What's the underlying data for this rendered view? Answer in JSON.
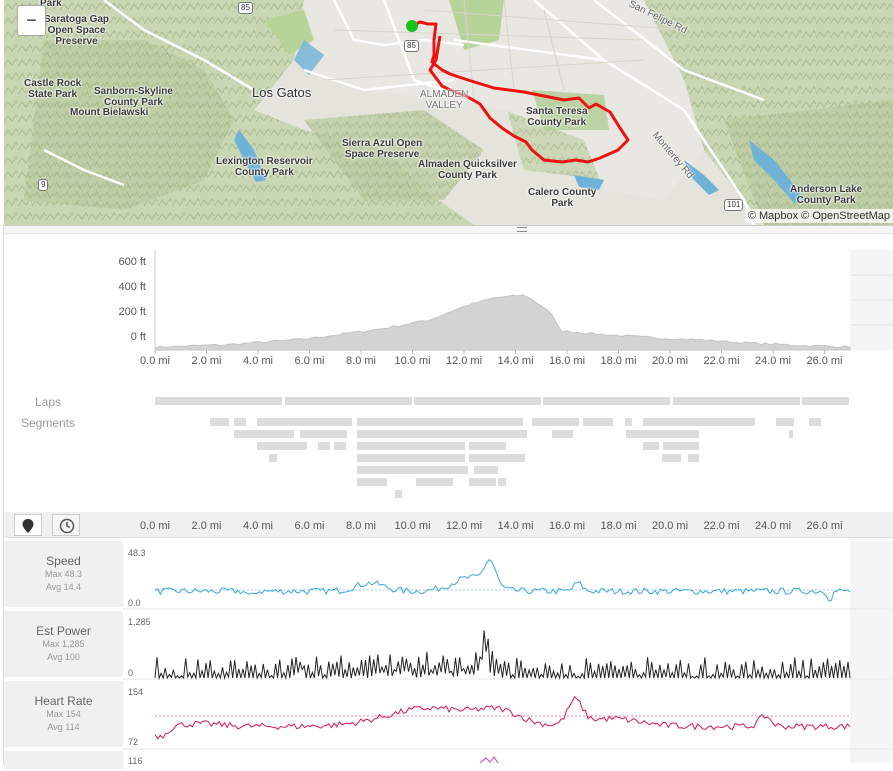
{
  "map": {
    "zoom_out_label": "−",
    "attribution": "© Mapbox © OpenStreetMap",
    "labels": [
      {
        "text": "Saratoga Gap\nOpen Space\nPreserve",
        "kind": "place"
      },
      {
        "text": "Castle Rock\nState Park",
        "kind": "place"
      },
      {
        "text": "Sanborn-Skyline\nCounty Park",
        "kind": "place"
      },
      {
        "text": "Mount Bielawski",
        "kind": "place"
      },
      {
        "text": "Los Gatos",
        "kind": "city"
      },
      {
        "text": "Lexington Reservoir\nCounty Park",
        "kind": "place"
      },
      {
        "text": "Sierra Azul Open\nSpace Preserve",
        "kind": "place"
      },
      {
        "text": "Almaden Quicksilver\nCounty Park",
        "kind": "place"
      },
      {
        "text": "ALMADEN\nVALLEY",
        "kind": "area"
      },
      {
        "text": "Santa Teresa\nCounty Park",
        "kind": "place"
      },
      {
        "text": "Calero County\nPark",
        "kind": "place"
      },
      {
        "text": "Anderson Lake\nCounty Park",
        "kind": "place"
      },
      {
        "text": "San Felipe Rd",
        "kind": "street"
      },
      {
        "text": "Monterey Rd",
        "kind": "street"
      },
      {
        "text": "Park",
        "kind": "place"
      }
    ],
    "shields": [
      "85",
      "85",
      "9",
      "101"
    ],
    "colors": {
      "route": "#ee1111",
      "start": "#19c31a"
    }
  },
  "elevation": {
    "y_ticks": [
      "600 ft",
      "400 ft",
      "200 ft",
      "0 ft"
    ],
    "x_ticks": [
      "0.0 mi",
      "2.0 mi",
      "4.0 mi",
      "6.0 mi",
      "8.0 mi",
      "10.0 mi",
      "12.0 mi",
      "14.0 mi",
      "16.0 mi",
      "18.0 mi",
      "20.0 mi",
      "22.0 mi",
      "24.0 mi",
      "26.0 mi"
    ],
    "laps_label": "Laps",
    "segments_label": "Segments"
  },
  "streams": {
    "distance_toggle_icon": "map-marker-icon",
    "time_toggle_icon": "clock-icon",
    "x_ticks": [
      "0.0 mi",
      "2.0 mi",
      "4.0 mi",
      "6.0 mi",
      "8.0 mi",
      "10.0 mi",
      "12.0 mi",
      "14.0 mi",
      "16.0 mi",
      "18.0 mi",
      "20.0 mi",
      "22.0 mi",
      "24.0 mi",
      "26.0 mi"
    ],
    "speed": {
      "title": "Speed",
      "max": "Max 48.3",
      "avg": "Avg 14.4",
      "axis_max": "48.3",
      "axis_min": "0.0",
      "color": "#3aa6dd"
    },
    "power": {
      "title": "Est Power",
      "max": "Max 1,285",
      "avg": "Avg 100",
      "axis_max": "1,285",
      "axis_min": "0",
      "color": "#222222"
    },
    "heart_rate": {
      "title": "Heart Rate",
      "max": "Max 154",
      "avg": "Avg 114",
      "axis_max": "154",
      "axis_min": "72",
      "color": "#d6155a"
    },
    "next_axis_max": "116"
  }
}
